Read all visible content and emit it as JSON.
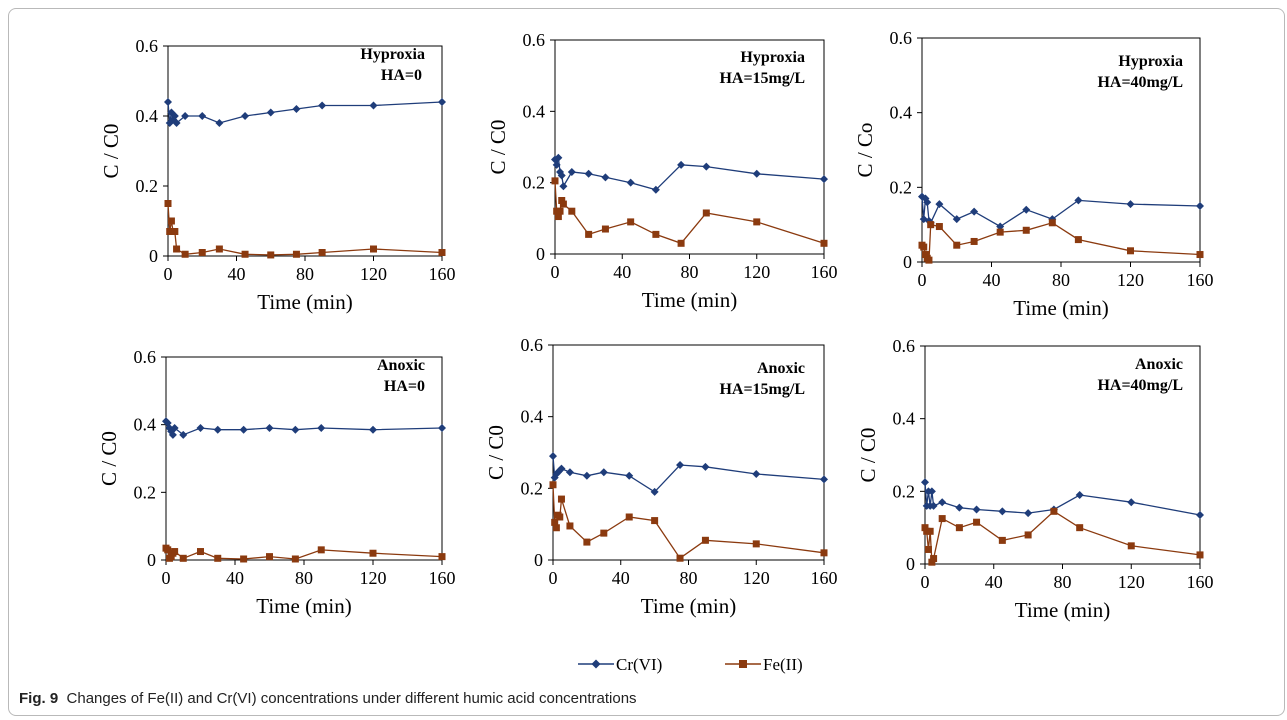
{
  "caption": {
    "label": "Fig. 9",
    "text": "Changes of Fe(II) and Cr(VI) concentrations under different humic acid concentrations"
  },
  "legend": [
    {
      "name": "Cr(VI)",
      "color": "#1f3d7a",
      "marker": "diamond"
    },
    {
      "name": "Fe(II)",
      "color": "#8b3a0f",
      "marker": "square"
    }
  ],
  "chart_data": [
    {
      "type": "line",
      "annotation": [
        "Hyproxia",
        "HA=0"
      ],
      "xlabel": "Time (min)",
      "ylabel": "C / C0",
      "xlim": [
        0,
        160
      ],
      "ylim": [
        0,
        0.6
      ],
      "xticks": [
        0,
        40,
        80,
        120,
        160
      ],
      "yticks": [
        "0",
        "0.2",
        "0.4",
        "0.6"
      ],
      "series": [
        {
          "name": "Cr(VI)",
          "x": [
            0,
            1,
            2,
            3,
            4,
            5,
            10,
            20,
            30,
            45,
            60,
            75,
            90,
            120,
            160
          ],
          "y": [
            0.44,
            0.38,
            0.41,
            0.39,
            0.4,
            0.38,
            0.4,
            0.4,
            0.38,
            0.4,
            0.41,
            0.42,
            0.43,
            0.43,
            0.44
          ]
        },
        {
          "name": "Fe(II)",
          "x": [
            0,
            1,
            2,
            3,
            4,
            5,
            10,
            20,
            30,
            45,
            60,
            75,
            90,
            120,
            160
          ],
          "y": [
            0.15,
            0.07,
            0.1,
            0.07,
            0.07,
            0.02,
            0.005,
            0.01,
            0.02,
            0.005,
            0.003,
            0.005,
            0.01,
            0.02,
            0.01
          ]
        }
      ]
    },
    {
      "type": "line",
      "annotation": [
        "Hyproxia",
        "HA=15mg/L"
      ],
      "xlabel": "Time (min)",
      "ylabel": "C / C0",
      "xlim": [
        0,
        160
      ],
      "ylim": [
        0,
        0.6
      ],
      "xticks": [
        0,
        40,
        80,
        120,
        160
      ],
      "yticks": [
        "0",
        "0.2",
        "0.4",
        "0.6"
      ],
      "series": [
        {
          "name": "Cr(VI)",
          "x": [
            0,
            1,
            2,
            3,
            4,
            5,
            10,
            20,
            30,
            45,
            60,
            75,
            90,
            120,
            160
          ],
          "y": [
            0.265,
            0.25,
            0.27,
            0.23,
            0.22,
            0.19,
            0.23,
            0.225,
            0.215,
            0.2,
            0.18,
            0.25,
            0.245,
            0.225,
            0.21
          ]
        },
        {
          "name": "Fe(II)",
          "x": [
            0,
            1,
            2,
            3,
            4,
            5,
            10,
            20,
            30,
            45,
            60,
            75,
            90,
            120,
            160
          ],
          "y": [
            0.205,
            0.12,
            0.105,
            0.12,
            0.15,
            0.14,
            0.12,
            0.055,
            0.07,
            0.09,
            0.055,
            0.03,
            0.115,
            0.09,
            0.03
          ]
        }
      ]
    },
    {
      "type": "line",
      "annotation": [
        "Hyproxia",
        "HA=40mg/L"
      ],
      "xlabel": "Time (min)",
      "ylabel": "C / Co",
      "xlim": [
        0,
        160
      ],
      "ylim": [
        0,
        0.6
      ],
      "xticks": [
        0,
        40,
        80,
        120,
        160
      ],
      "yticks": [
        "0",
        "0.2",
        "0.4",
        "0.6"
      ],
      "series": [
        {
          "name": "Cr(VI)",
          "x": [
            0,
            1,
            2,
            3,
            4,
            5,
            10,
            20,
            30,
            45,
            60,
            75,
            90,
            120,
            160
          ],
          "y": [
            0.175,
            0.115,
            0.17,
            0.16,
            0.11,
            0.105,
            0.155,
            0.115,
            0.135,
            0.095,
            0.14,
            0.115,
            0.165,
            0.155,
            0.15
          ]
        },
        {
          "name": "Fe(II)",
          "x": [
            0,
            1,
            2,
            3,
            4,
            5,
            10,
            20,
            30,
            45,
            60,
            75,
            90,
            120,
            160
          ],
          "y": [
            0.045,
            0.04,
            0.02,
            0.01,
            0.005,
            0.1,
            0.095,
            0.045,
            0.055,
            0.08,
            0.085,
            0.105,
            0.06,
            0.03,
            0.02
          ]
        }
      ]
    },
    {
      "type": "line",
      "annotation": [
        "Anoxic",
        "HA=0"
      ],
      "xlabel": "Time (min)",
      "ylabel": "C / C0",
      "xlim": [
        0,
        160
      ],
      "ylim": [
        0,
        0.6
      ],
      "xticks": [
        0,
        40,
        80,
        120,
        160
      ],
      "yticks": [
        "0",
        "0.2",
        "0.4",
        "0.6"
      ],
      "series": [
        {
          "name": "Cr(VI)",
          "x": [
            0,
            1,
            2,
            3,
            4,
            5,
            10,
            20,
            30,
            45,
            60,
            75,
            90,
            120,
            160
          ],
          "y": [
            0.41,
            0.405,
            0.39,
            0.38,
            0.37,
            0.39,
            0.37,
            0.39,
            0.385,
            0.385,
            0.39,
            0.385,
            0.39,
            0.385,
            0.39
          ]
        },
        {
          "name": "Fe(II)",
          "x": [
            0,
            1,
            2,
            3,
            4,
            5,
            10,
            20,
            30,
            45,
            60,
            75,
            90,
            120,
            160
          ],
          "y": [
            0.035,
            0.03,
            0.005,
            0.01,
            0.02,
            0.025,
            0.005,
            0.025,
            0.005,
            0.003,
            0.01,
            0.003,
            0.03,
            0.02,
            0.01
          ]
        }
      ]
    },
    {
      "type": "line",
      "annotation": [
        "Anoxic",
        "HA=15mg/L"
      ],
      "xlabel": "Time (min)",
      "ylabel": "C / C0",
      "xlim": [
        0,
        160
      ],
      "ylim": [
        0,
        0.6
      ],
      "xticks": [
        0,
        40,
        80,
        120,
        160
      ],
      "yticks": [
        "0",
        "0.2",
        "0.4",
        "0.6"
      ],
      "series": [
        {
          "name": "Cr(VI)",
          "x": [
            0,
            1,
            2,
            3,
            4,
            5,
            10,
            20,
            30,
            45,
            60,
            75,
            90,
            120,
            160
          ],
          "y": [
            0.29,
            0.23,
            0.24,
            0.245,
            0.25,
            0.255,
            0.245,
            0.235,
            0.245,
            0.235,
            0.19,
            0.265,
            0.26,
            0.24,
            0.225
          ]
        },
        {
          "name": "Fe(II)",
          "x": [
            0,
            1,
            2,
            3,
            4,
            5,
            10,
            20,
            30,
            45,
            60,
            75,
            90,
            120,
            160
          ],
          "y": [
            0.21,
            0.105,
            0.09,
            0.125,
            0.12,
            0.17,
            0.095,
            0.05,
            0.075,
            0.12,
            0.11,
            0.005,
            0.055,
            0.045,
            0.02
          ]
        }
      ]
    },
    {
      "type": "line",
      "annotation": [
        "Anoxic",
        "HA=40mg/L"
      ],
      "xlabel": "Time (min)",
      "ylabel": "C / C0",
      "xlim": [
        0,
        160
      ],
      "ylim": [
        0,
        0.6
      ],
      "xticks": [
        0,
        40,
        80,
        120,
        160
      ],
      "yticks": [
        "0",
        "0.2",
        "0.4",
        "0.6"
      ],
      "series": [
        {
          "name": "Cr(VI)",
          "x": [
            0,
            1,
            2,
            3,
            4,
            5,
            10,
            20,
            30,
            45,
            60,
            75,
            90,
            120,
            160
          ],
          "y": [
            0.225,
            0.16,
            0.2,
            0.16,
            0.2,
            0.16,
            0.17,
            0.155,
            0.15,
            0.145,
            0.14,
            0.15,
            0.19,
            0.17,
            0.135
          ]
        },
        {
          "name": "Fe(II)",
          "x": [
            0,
            1,
            2,
            3,
            4,
            5,
            10,
            20,
            30,
            45,
            60,
            75,
            90,
            120,
            160
          ],
          "y": [
            0.1,
            0.09,
            0.04,
            0.09,
            0.005,
            0.015,
            0.125,
            0.1,
            0.115,
            0.065,
            0.08,
            0.145,
            0.1,
            0.05,
            0.025
          ]
        }
      ]
    }
  ]
}
